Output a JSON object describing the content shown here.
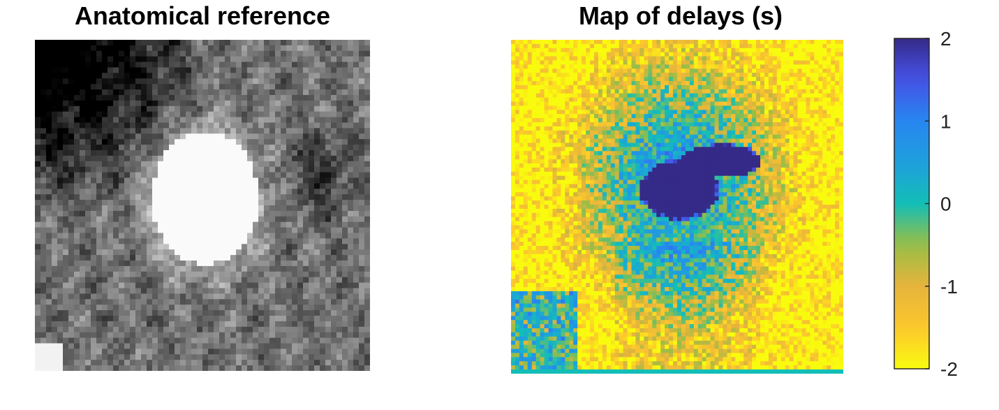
{
  "chart_data": [
    {
      "type": "heatmap",
      "title": "Anatomical reference",
      "colormap": "gray"
    },
    {
      "type": "heatmap",
      "title": "Map of delays (s)",
      "colormap": "parula",
      "colorbar": {
        "limits": [
          -2,
          2
        ],
        "ticks": [
          2,
          1,
          0,
          -1,
          -2
        ],
        "tick_labels": [
          "2",
          "1",
          "0",
          "-1",
          "-2"
        ]
      }
    }
  ],
  "colors": {
    "parula_low": "#f9fb0e",
    "parula_mid_low": "#fbb932",
    "parula_mid": "#13beb7",
    "parula_mid_high": "#2786f0",
    "parula_high": "#352a87"
  }
}
